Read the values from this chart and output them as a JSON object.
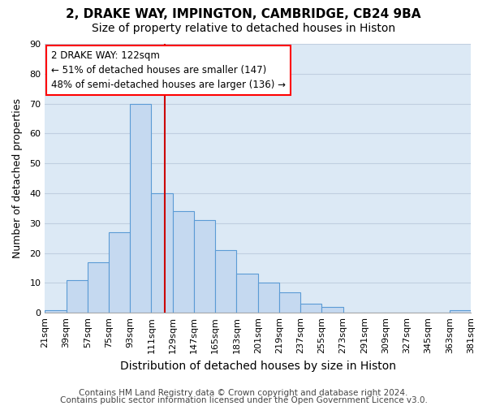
{
  "title": "2, DRAKE WAY, IMPINGTON, CAMBRIDGE, CB24 9BA",
  "subtitle": "Size of property relative to detached houses in Histon",
  "xlabel": "Distribution of detached houses by size in Histon",
  "ylabel": "Number of detached properties",
  "footer_line1": "Contains HM Land Registry data © Crown copyright and database right 2024.",
  "footer_line2": "Contains public sector information licensed under the Open Government Licence v3.0.",
  "bin_labels": [
    "21sqm",
    "39sqm",
    "57sqm",
    "75sqm",
    "93sqm",
    "111sqm",
    "129sqm",
    "147sqm",
    "165sqm",
    "183sqm",
    "201sqm",
    "219sqm",
    "237sqm",
    "255sqm",
    "273sqm",
    "291sqm",
    "309sqm",
    "327sqm",
    "345sqm",
    "363sqm",
    "381sqm"
  ],
  "bar_heights": [
    1,
    11,
    17,
    27,
    70,
    40,
    34,
    31,
    21,
    13,
    10,
    7,
    3,
    2,
    0,
    0,
    0,
    0,
    0,
    1
  ],
  "bin_starts": [
    21,
    39,
    57,
    75,
    93,
    111,
    129,
    147,
    165,
    183,
    201,
    219,
    237,
    255,
    273,
    291,
    309,
    327,
    345,
    363
  ],
  "bin_width": 18,
  "bar_color": "#c5d9f0",
  "bar_edge_color": "#5b9bd5",
  "vline_x": 122,
  "vline_color": "#cc0000",
  "annotation_line1": "2 DRAKE WAY: 122sqm",
  "annotation_line2": "← 51% of detached houses are smaller (147)",
  "annotation_line3": "48% of semi-detached houses are larger (136) →",
  "ylim": [
    0,
    90
  ],
  "yticks": [
    0,
    10,
    20,
    30,
    40,
    50,
    60,
    70,
    80,
    90
  ],
  "grid_color": "#c0cfe0",
  "background_color": "#dce9f5",
  "title_fontsize": 11,
  "subtitle_fontsize": 10,
  "xlabel_fontsize": 10,
  "ylabel_fontsize": 9,
  "tick_fontsize": 8,
  "footer_fontsize": 7.5
}
